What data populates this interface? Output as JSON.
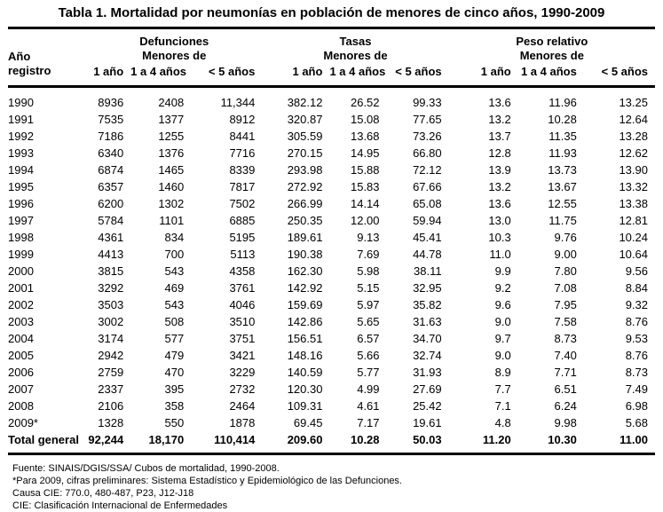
{
  "title": "Tabla 1. Mortalidad por neumonías en población de menores de cinco años, 1990-2009",
  "table": {
    "row_header": {
      "line1": "Año",
      "line2": "registro"
    },
    "groups": [
      {
        "label": "Defunciones",
        "sublabel": "Menores de"
      },
      {
        "label": "Tasas",
        "sublabel": "Menores de"
      },
      {
        "label": "Peso relativo",
        "sublabel": "Menores de"
      }
    ],
    "subheaders": [
      "1 año",
      "1 a 4 años",
      "< 5 años"
    ],
    "rows": [
      {
        "year": "1990",
        "cells": [
          "8936",
          "2408",
          "11,344",
          "382.12",
          "26.52",
          "99.33",
          "13.6",
          "11.96",
          "13.25"
        ]
      },
      {
        "year": "1991",
        "cells": [
          "7535",
          "1377",
          "8912",
          "320.87",
          "15.08",
          "77.65",
          "13.2",
          "10.28",
          "12.64"
        ]
      },
      {
        "year": "1992",
        "cells": [
          "7186",
          "1255",
          "8441",
          "305.59",
          "13.68",
          "73.26",
          "13.7",
          "11.35",
          "13.28"
        ]
      },
      {
        "year": "1993",
        "cells": [
          "6340",
          "1376",
          "7716",
          "270.15",
          "14.95",
          "66.80",
          "12.8",
          "11.93",
          "12.62"
        ]
      },
      {
        "year": "1994",
        "cells": [
          "6874",
          "1465",
          "8339",
          "293.98",
          "15.88",
          "72.12",
          "13.9",
          "13.73",
          "13.90"
        ]
      },
      {
        "year": "1995",
        "cells": [
          "6357",
          "1460",
          "7817",
          "272.92",
          "15.83",
          "67.66",
          "13.2",
          "13.67",
          "13.32"
        ]
      },
      {
        "year": "1996",
        "cells": [
          "6200",
          "1302",
          "7502",
          "266.99",
          "14.14",
          "65.08",
          "13.6",
          "12.55",
          "13.38"
        ]
      },
      {
        "year": "1997",
        "cells": [
          "5784",
          "1101",
          "6885",
          "250.35",
          "12.00",
          "59.94",
          "13.0",
          "11.75",
          "12.81"
        ]
      },
      {
        "year": "1998",
        "cells": [
          "4361",
          "834",
          "5195",
          "189.61",
          "9.13",
          "45.41",
          "10.3",
          "9.76",
          "10.24"
        ]
      },
      {
        "year": "1999",
        "cells": [
          "4413",
          "700",
          "5113",
          "190.38",
          "7.69",
          "44.78",
          "11.0",
          "9.00",
          "10.64"
        ]
      },
      {
        "year": "2000",
        "cells": [
          "3815",
          "543",
          "4358",
          "162.30",
          "5.98",
          "38.11",
          "9.9",
          "7.80",
          "9.56"
        ]
      },
      {
        "year": "2001",
        "cells": [
          "3292",
          "469",
          "3761",
          "142.92",
          "5.15",
          "32.95",
          "9.2",
          "7.08",
          "8.84"
        ]
      },
      {
        "year": "2002",
        "cells": [
          "3503",
          "543",
          "4046",
          "159.69",
          "5.97",
          "35.82",
          "9.6",
          "7.95",
          "9.32"
        ]
      },
      {
        "year": "2003",
        "cells": [
          "3002",
          "508",
          "3510",
          "142.86",
          "5.65",
          "31.63",
          "9.0",
          "7.58",
          "8.76"
        ]
      },
      {
        "year": "2004",
        "cells": [
          "3174",
          "577",
          "3751",
          "156.51",
          "6.57",
          "34.70",
          "9.7",
          "8.73",
          "9.53"
        ]
      },
      {
        "year": "2005",
        "cells": [
          "2942",
          "479",
          "3421",
          "148.16",
          "5.66",
          "32.74",
          "9.0",
          "7.40",
          "8.76"
        ]
      },
      {
        "year": "2006",
        "cells": [
          "2759",
          "470",
          "3229",
          "140.59",
          "5.77",
          "31.93",
          "8.9",
          "7.71",
          "8.73"
        ]
      },
      {
        "year": "2007",
        "cells": [
          "2337",
          "395",
          "2732",
          "120.30",
          "4.99",
          "27.69",
          "7.7",
          "6.51",
          "7.49"
        ]
      },
      {
        "year": "2008",
        "cells": [
          "2106",
          "358",
          "2464",
          "109.31",
          "4.61",
          "25.42",
          "7.1",
          "6.24",
          "6.98"
        ]
      },
      {
        "year": "2009*",
        "cells": [
          "1328",
          "550",
          "1878",
          "69.45",
          "7.17",
          "19.61",
          "4.8",
          "9.98",
          "5.68"
        ]
      },
      {
        "year": "Total general",
        "bold": true,
        "cells": [
          "92,244",
          "18,170",
          "110,414",
          "209.60",
          "10.28",
          "50.03",
          "11.20",
          "10.30",
          "11.00"
        ]
      }
    ]
  },
  "footnotes": [
    "Fuente: SINAIS/DGIS/SSA/ Cubos de mortalidad, 1990-2008.",
    "*Para 2009, cifras preliminares: Sistema Estadístico y Epidemiológico de las Defunciones.",
    "Causa CIE: 770.0, 480-487, P23, J12-J18",
    "CIE: Clasificación Internacional de Enfermedades"
  ]
}
